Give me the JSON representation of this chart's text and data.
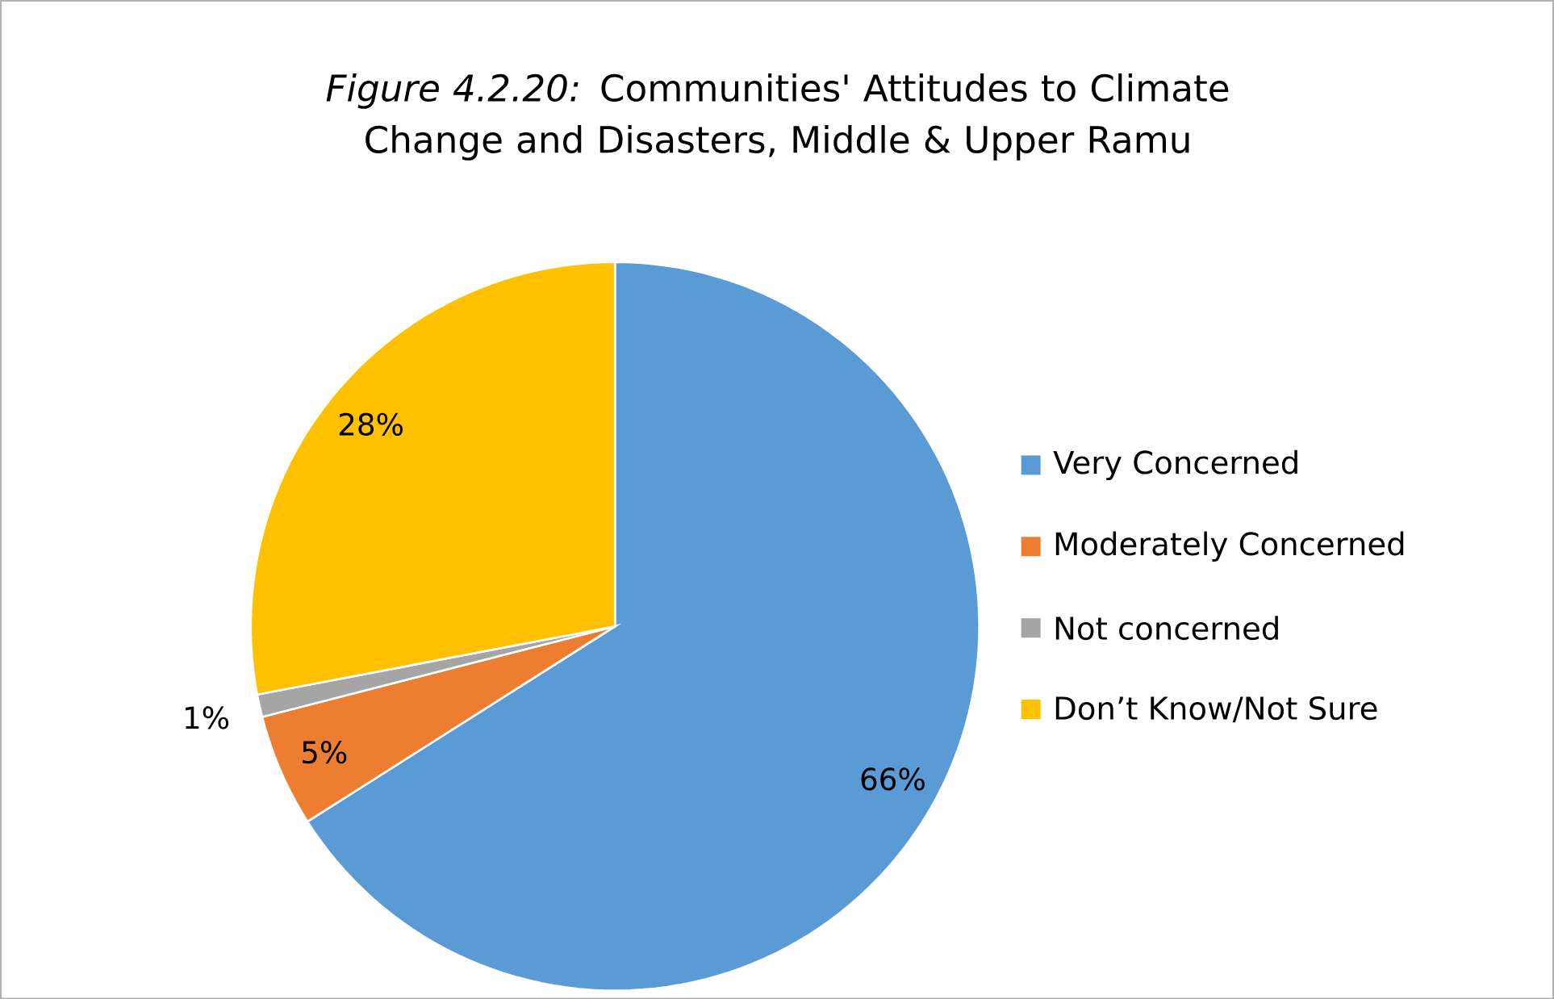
{
  "chart_data": {
    "type": "pie",
    "title": "*Figure 4.2.20:* Communities' Attitudes to Climate Change and Disasters, Middle & Upper Ramu",
    "categories": [
      "Very Concerned",
      "Moderately Concerned",
      "Not concerned",
      "Don’t Know/Not Sure"
    ],
    "values": [
      66,
      5,
      1,
      28
    ],
    "colors": [
      "#5b9bd5",
      "#ed7d31",
      "#a5a5a5",
      "#ffc000"
    ],
    "value_labels": [
      "66%",
      "5%",
      "1%",
      "28%"
    ],
    "legend": "right"
  }
}
